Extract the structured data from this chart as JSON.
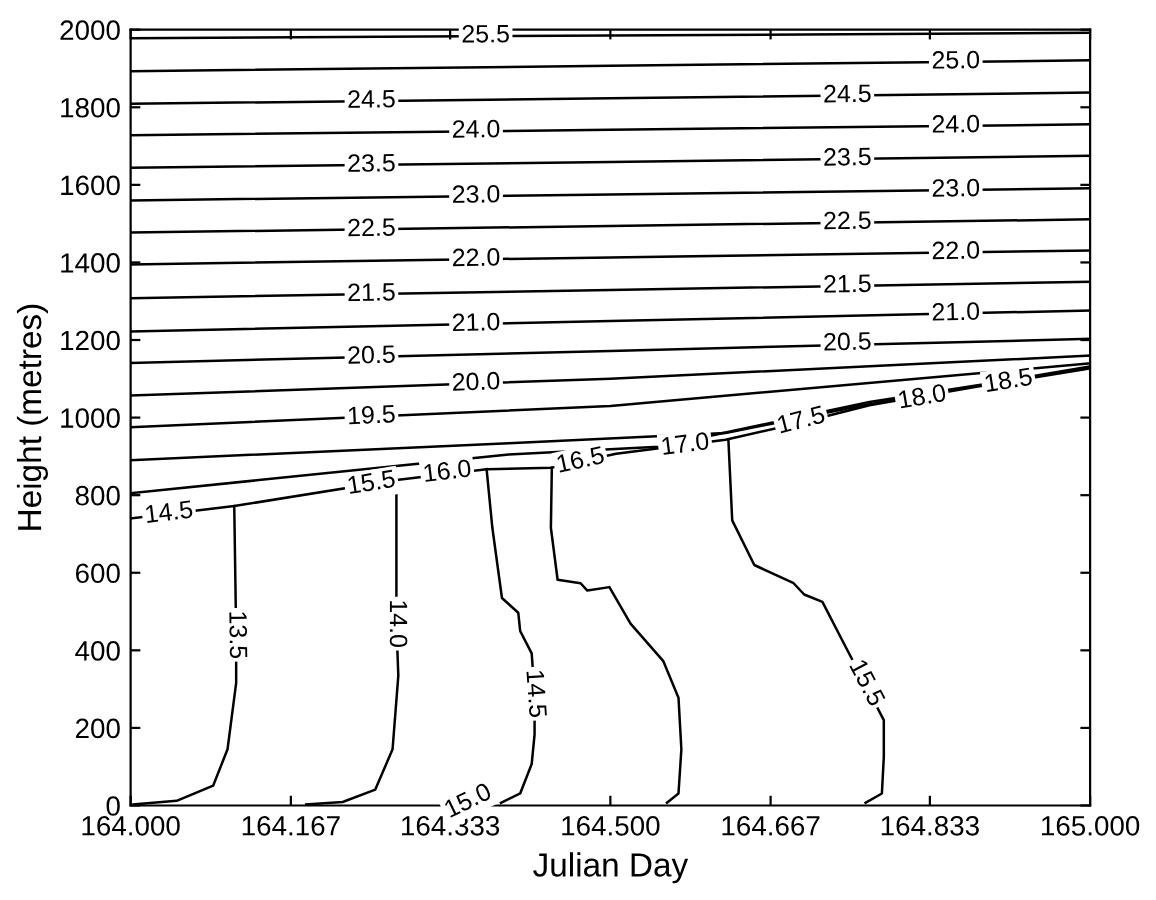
{
  "chart_data": {
    "type": "line",
    "xlabel": "Julian Day",
    "ylabel": "Height (metres)",
    "xlim": [
      164.0,
      165.0
    ],
    "ylim": [
      0,
      2000
    ],
    "xticks": [
      {
        "value": 164.0,
        "label": "164.000"
      },
      {
        "value": 164.167,
        "label": "164.167"
      },
      {
        "value": 164.333,
        "label": "164.333"
      },
      {
        "value": 164.5,
        "label": "164.500"
      },
      {
        "value": 164.667,
        "label": "164.667"
      },
      {
        "value": 164.833,
        "label": "164.833"
      },
      {
        "value": 165.0,
        "label": "165.000"
      }
    ],
    "yticks": [
      0,
      200,
      400,
      600,
      800,
      1000,
      1200,
      1400,
      1600,
      1800,
      2000
    ],
    "grid": false,
    "marker": "none",
    "line_style": "solid",
    "series": [
      {
        "color": "#000000",
        "x": [
          164.0,
          164.5,
          165.0
        ],
        "values": [
          1978,
          1985,
          1992
        ]
      },
      {
        "color": "#000000",
        "x": [
          164.0,
          164.5,
          165.0
        ],
        "values": [
          1893,
          1907,
          1921
        ]
      },
      {
        "color": "#000000",
        "x": [
          164.0,
          164.5,
          165.0
        ],
        "values": [
          1809,
          1823,
          1838
        ]
      },
      {
        "color": "#000000",
        "x": [
          164.0,
          164.5,
          165.0
        ],
        "values": [
          1728,
          1742,
          1756
        ]
      },
      {
        "color": "#000000",
        "x": [
          164.0,
          164.5,
          165.0
        ],
        "values": [
          1644,
          1659,
          1675
        ]
      },
      {
        "color": "#000000",
        "x": [
          164.0,
          164.5,
          165.0
        ],
        "values": [
          1560,
          1575,
          1591
        ]
      },
      {
        "color": "#000000",
        "x": [
          164.0,
          164.5,
          165.0
        ],
        "values": [
          1477,
          1494,
          1511
        ]
      },
      {
        "color": "#000000",
        "x": [
          164.0,
          164.5,
          165.0
        ],
        "values": [
          1395,
          1413,
          1431
        ]
      },
      {
        "color": "#000000",
        "x": [
          164.0,
          164.5,
          165.0
        ],
        "values": [
          1308,
          1329,
          1350
        ]
      },
      {
        "color": "#000000",
        "x": [
          164.0,
          164.5,
          165.0
        ],
        "values": [
          1222,
          1249,
          1276
        ]
      },
      {
        "color": "#000000",
        "x": [
          164.0,
          164.5,
          165.0
        ],
        "values": [
          1141,
          1172,
          1203
        ]
      },
      {
        "color": "#000000",
        "x": [
          164.0,
          164.5,
          165.0
        ],
        "values": [
          1057,
          1100,
          1160
        ]
      },
      {
        "color": "#000000",
        "x": [
          164.0,
          164.5,
          165.0
        ],
        "values": [
          975,
          1030,
          1140
        ]
      },
      {
        "color": "#000000",
        "x": [
          164.0,
          164.394,
          164.62,
          164.76,
          165.0
        ],
        "values": [
          890,
          934,
          960,
          1030,
          1132
        ]
      },
      {
        "color": "#000000",
        "x": [
          164.0,
          164.394,
          164.55,
          164.77,
          165.0
        ],
        "values": [
          805,
          905,
          925,
          1040,
          1128
        ]
      },
      {
        "color": "#000000",
        "x": [
          164.0,
          164.108,
          164.277,
          164.371,
          164.439,
          164.506,
          164.62,
          164.695,
          164.77,
          164.883,
          165.0
        ],
        "values": [
          740,
          772,
          839,
          867,
          871,
          907,
          943,
          985,
          1032,
          1080,
          1127
        ]
      },
      {
        "color": "#000000",
        "x": [
          164.108,
          164.11,
          164.11,
          164.101,
          164.086,
          164.048,
          164.003
        ],
        "values": [
          772,
          440,
          316,
          145,
          51,
          12,
          3
        ]
      },
      {
        "color": "#000000",
        "x": [
          164.277,
          164.277,
          164.277,
          164.279,
          164.273,
          164.255,
          164.221,
          164.183
        ],
        "values": [
          839,
          563,
          469,
          335,
          145,
          41,
          9,
          3
        ]
      },
      {
        "color": "#000000",
        "x": [
          164.371,
          164.377,
          164.387,
          164.404,
          164.406,
          164.418,
          164.421,
          164.421,
          164.418,
          164.406,
          164.386
        ],
        "values": [
          867,
          716,
          535,
          497,
          450,
          392,
          288,
          183,
          107,
          31,
          7
        ]
      },
      {
        "color": "#000000",
        "x": [
          164.439,
          164.438,
          164.445,
          164.469,
          164.476,
          164.499,
          164.521,
          164.555,
          164.571,
          164.574,
          164.571,
          164.559
        ],
        "values": [
          871,
          716,
          582,
          573,
          554,
          563,
          469,
          373,
          278,
          145,
          31,
          7
        ]
      },
      {
        "color": "#000000",
        "x": [
          164.623,
          164.627,
          164.65,
          164.691,
          164.702,
          164.721,
          164.745,
          164.785,
          164.785,
          164.783,
          164.766
        ],
        "values": [
          943,
          735,
          620,
          573,
          544,
          525,
          410,
          220,
          126,
          31,
          7
        ]
      }
    ],
    "annotations": [
      {
        "text": "25.5",
        "x": 164.37,
        "y": 1984
      },
      {
        "text": "25.0",
        "x": 164.86,
        "y": 1917
      },
      {
        "text": "24.5",
        "x": 164.251,
        "y": 1816
      },
      {
        "text": "24.5",
        "x": 164.747,
        "y": 1830
      },
      {
        "text": "24.0",
        "x": 164.36,
        "y": 1739
      },
      {
        "text": "24.0",
        "x": 164.86,
        "y": 1752
      },
      {
        "text": "23.5",
        "x": 164.251,
        "y": 1651
      },
      {
        "text": "23.5",
        "x": 164.747,
        "y": 1667
      },
      {
        "text": "23.0",
        "x": 164.36,
        "y": 1571
      },
      {
        "text": "23.0",
        "x": 164.86,
        "y": 1587
      },
      {
        "text": "22.5",
        "x": 164.251,
        "y": 1485
      },
      {
        "text": "22.5",
        "x": 164.747,
        "y": 1503
      },
      {
        "text": "22.0",
        "x": 164.36,
        "y": 1408
      },
      {
        "text": "22.0",
        "x": 164.86,
        "y": 1426
      },
      {
        "text": "21.5",
        "x": 164.251,
        "y": 1318
      },
      {
        "text": "21.5",
        "x": 164.747,
        "y": 1340
      },
      {
        "text": "21.0",
        "x": 164.36,
        "y": 1241
      },
      {
        "text": "21.0",
        "x": 164.86,
        "y": 1268
      },
      {
        "text": "20.5",
        "x": 164.251,
        "y": 1157
      },
      {
        "text": "20.5",
        "x": 164.747,
        "y": 1191
      },
      {
        "text": "20.0",
        "x": 164.36,
        "y": 1088
      },
      {
        "text": "19.5",
        "x": 164.251,
        "y": 1002
      },
      {
        "text": "14.5",
        "x": 164.04,
        "y": 752
      },
      {
        "text": "15.5",
        "x": 164.251,
        "y": 829
      },
      {
        "text": "16.0",
        "x": 164.33,
        "y": 858
      },
      {
        "text": "16.5",
        "x": 164.469,
        "y": 887
      },
      {
        "text": "17.0",
        "x": 164.578,
        "y": 928
      },
      {
        "text": "17.5",
        "x": 164.699,
        "y": 990
      },
      {
        "text": "18.0",
        "x": 164.825,
        "y": 1050
      },
      {
        "text": "18.5",
        "x": 164.915,
        "y": 1092
      },
      {
        "text": "13.5",
        "x": 164.11,
        "y": 440
      },
      {
        "text": "14.0",
        "x": 164.277,
        "y": 469
      },
      {
        "text": "14.5",
        "x": 164.421,
        "y": 288
      },
      {
        "text": "15.0",
        "x": 164.352,
        "y": 9
      },
      {
        "text": "15.5",
        "x": 164.766,
        "y": 315
      }
    ]
  }
}
